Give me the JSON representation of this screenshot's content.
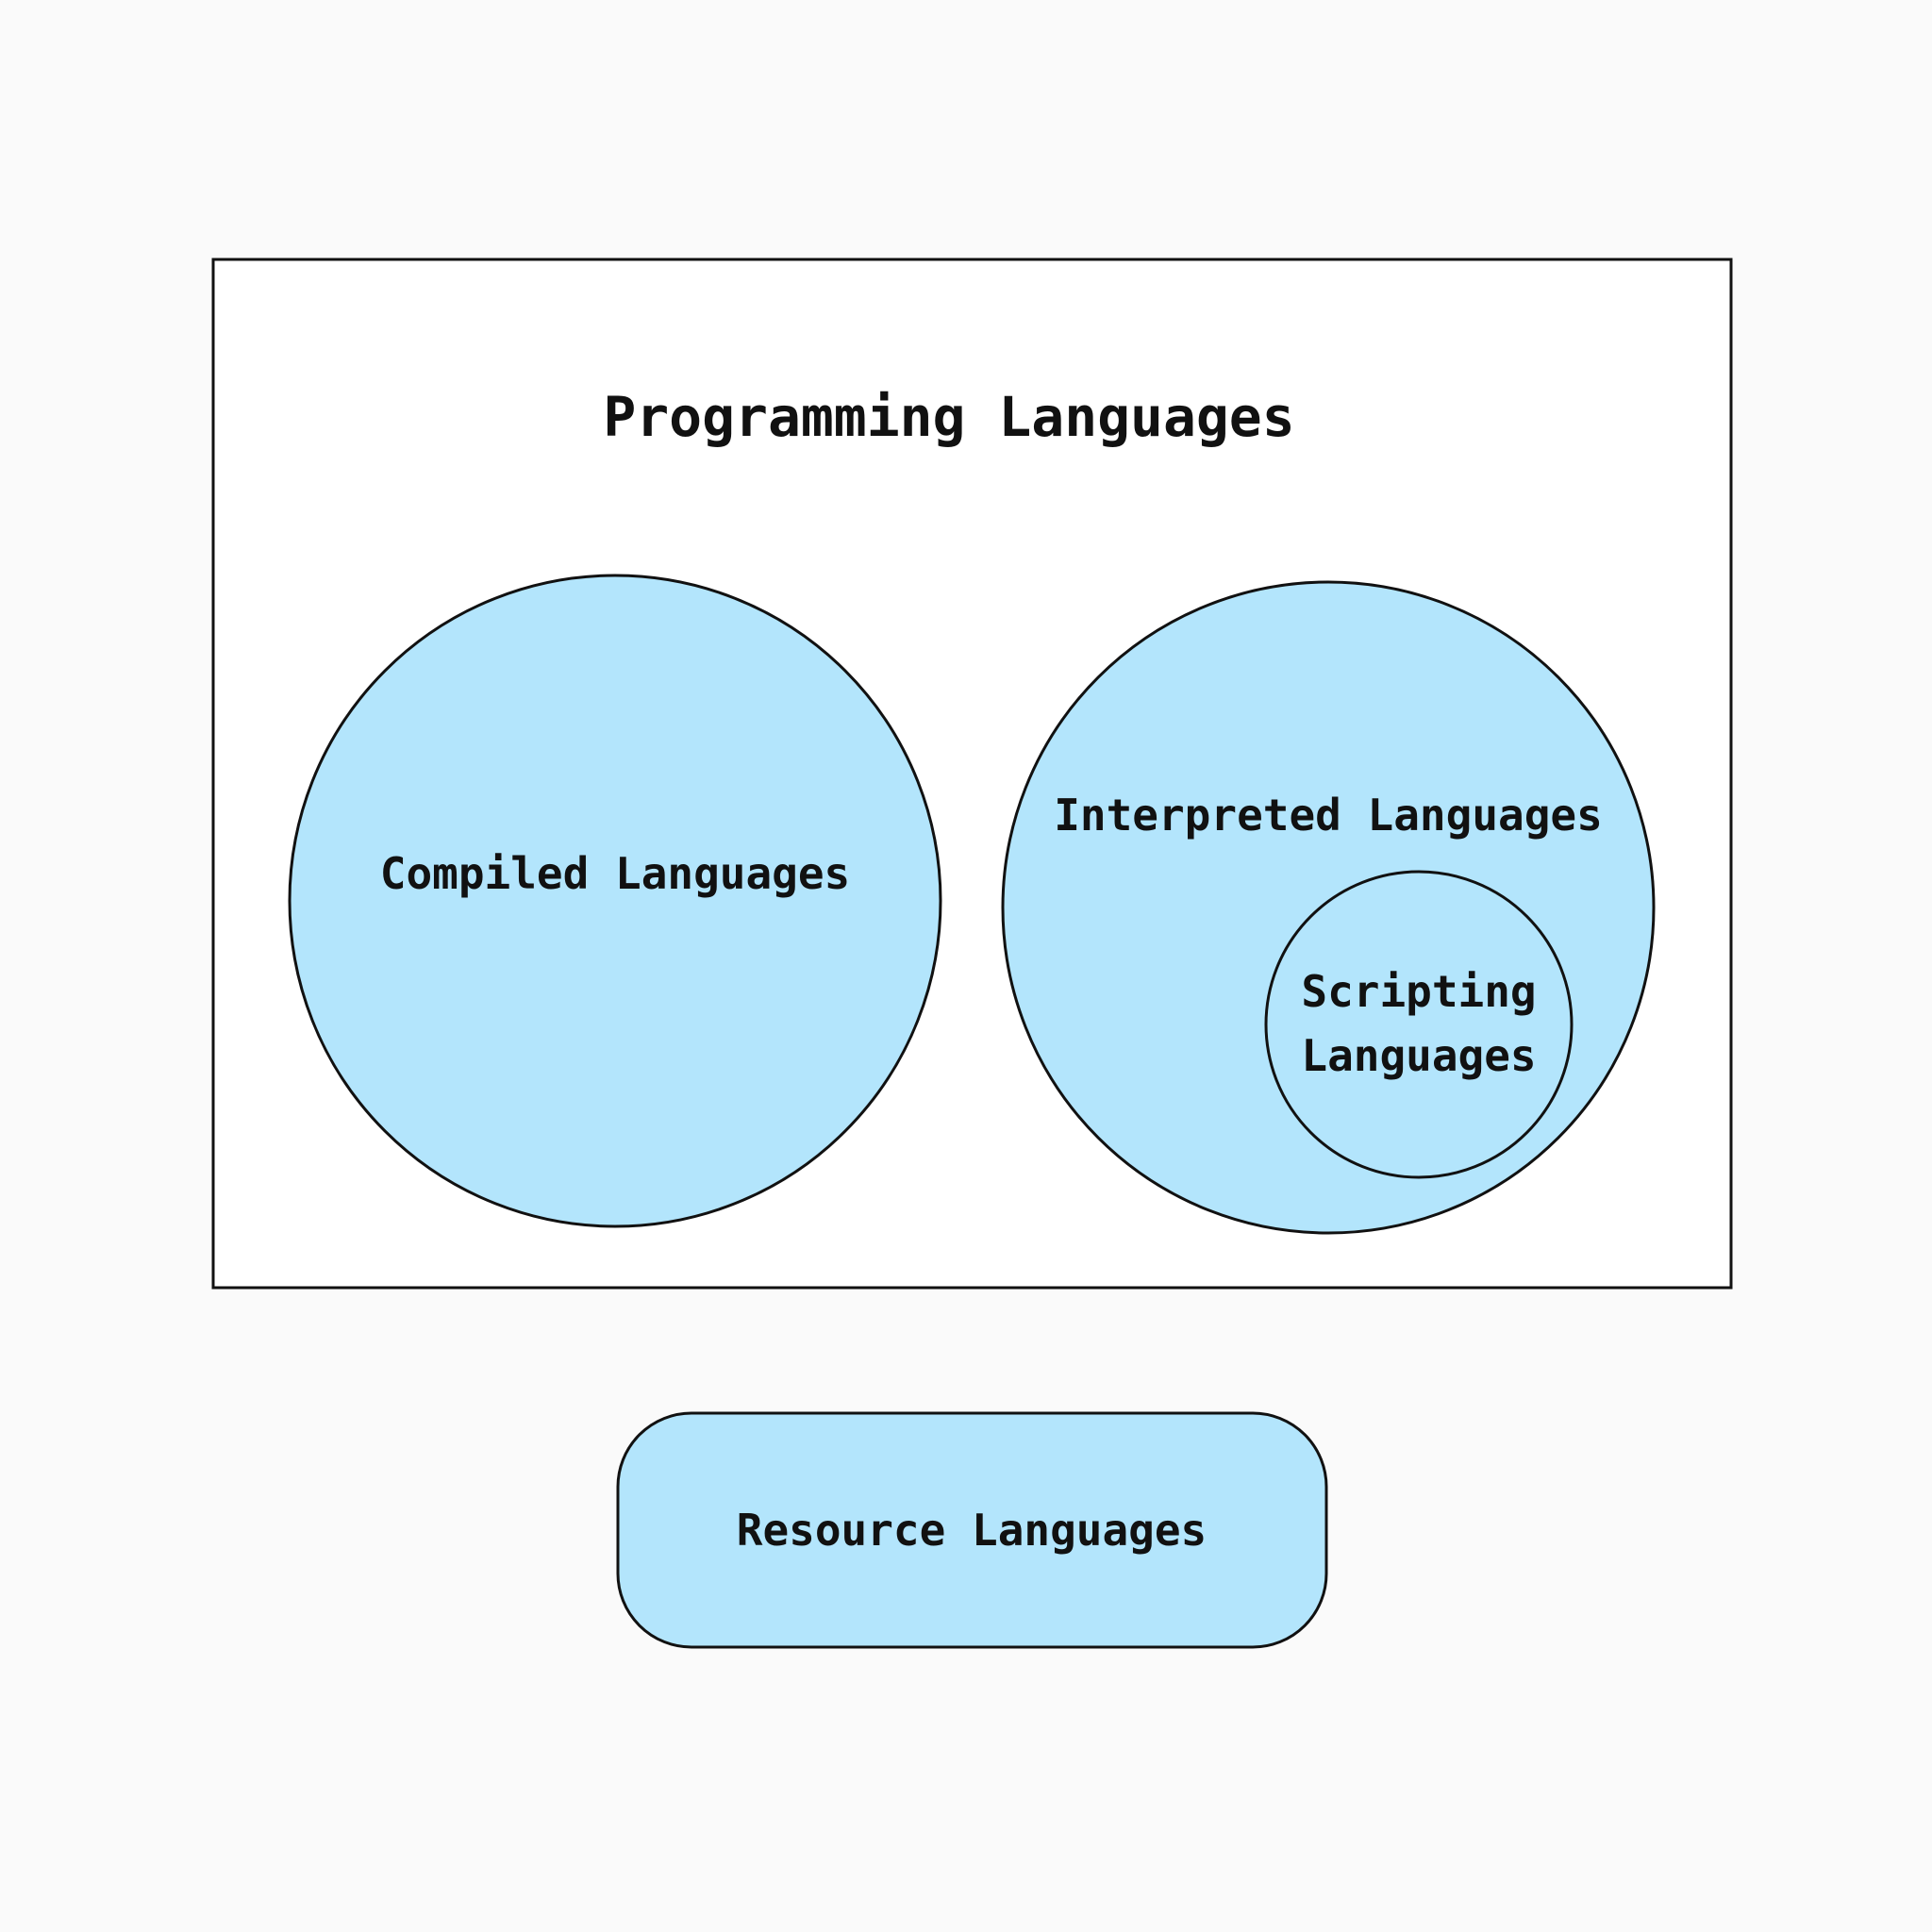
{
  "diagram": {
    "outer_box": {
      "title": "Programming Languages"
    },
    "compiled": {
      "label": "Compiled Languages"
    },
    "interpreted": {
      "label": "Interpreted Languages"
    },
    "scripting": {
      "label_line1": "Scripting",
      "label_line2": "Languages"
    },
    "resource": {
      "label": "Resource Languages"
    }
  },
  "colors": {
    "background": "#fafafa",
    "fill": "#b3e5fc",
    "stroke": "#111111"
  }
}
